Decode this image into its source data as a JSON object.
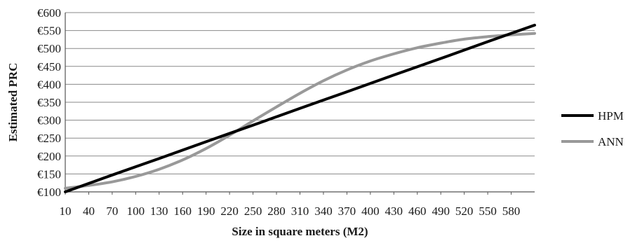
{
  "chart_data": {
    "type": "line",
    "title": "",
    "xlabel": "Size in square meters (M2)",
    "ylabel": "Estimated PRC",
    "x_ticks": [
      "10",
      "40",
      "70",
      "100",
      "130",
      "160",
      "190",
      "220",
      "250",
      "280",
      "310",
      "340",
      "370",
      "400",
      "430",
      "460",
      "490",
      "520",
      "550",
      "580"
    ],
    "xlim": [
      10,
      610
    ],
    "ylim": [
      100,
      600
    ],
    "y_ticks": [
      "€100",
      "€150",
      "€200",
      "€250",
      "€300",
      "€350",
      "€400",
      "€450",
      "€500",
      "€550",
      "€600"
    ],
    "grid": "horizontal",
    "legend_position": "right",
    "series": [
      {
        "name": "HPM",
        "color": "#000000",
        "x": [
          10,
          70,
          130,
          190,
          250,
          310,
          370,
          430,
          490,
          550,
          610
        ],
        "values": [
          100,
          147,
          193,
          240,
          286,
          333,
          379,
          426,
          472,
          519,
          565
        ]
      },
      {
        "name": "ANN",
        "color": "#999999",
        "x": [
          10,
          40,
          70,
          100,
          130,
          160,
          190,
          220,
          250,
          280,
          310,
          340,
          370,
          400,
          430,
          460,
          490,
          520,
          550,
          580,
          610
        ],
        "values": [
          110,
          118,
          128,
          143,
          163,
          189,
          221,
          258,
          298,
          337,
          375,
          410,
          440,
          465,
          485,
          502,
          515,
          526,
          533,
          538,
          542
        ]
      }
    ]
  }
}
